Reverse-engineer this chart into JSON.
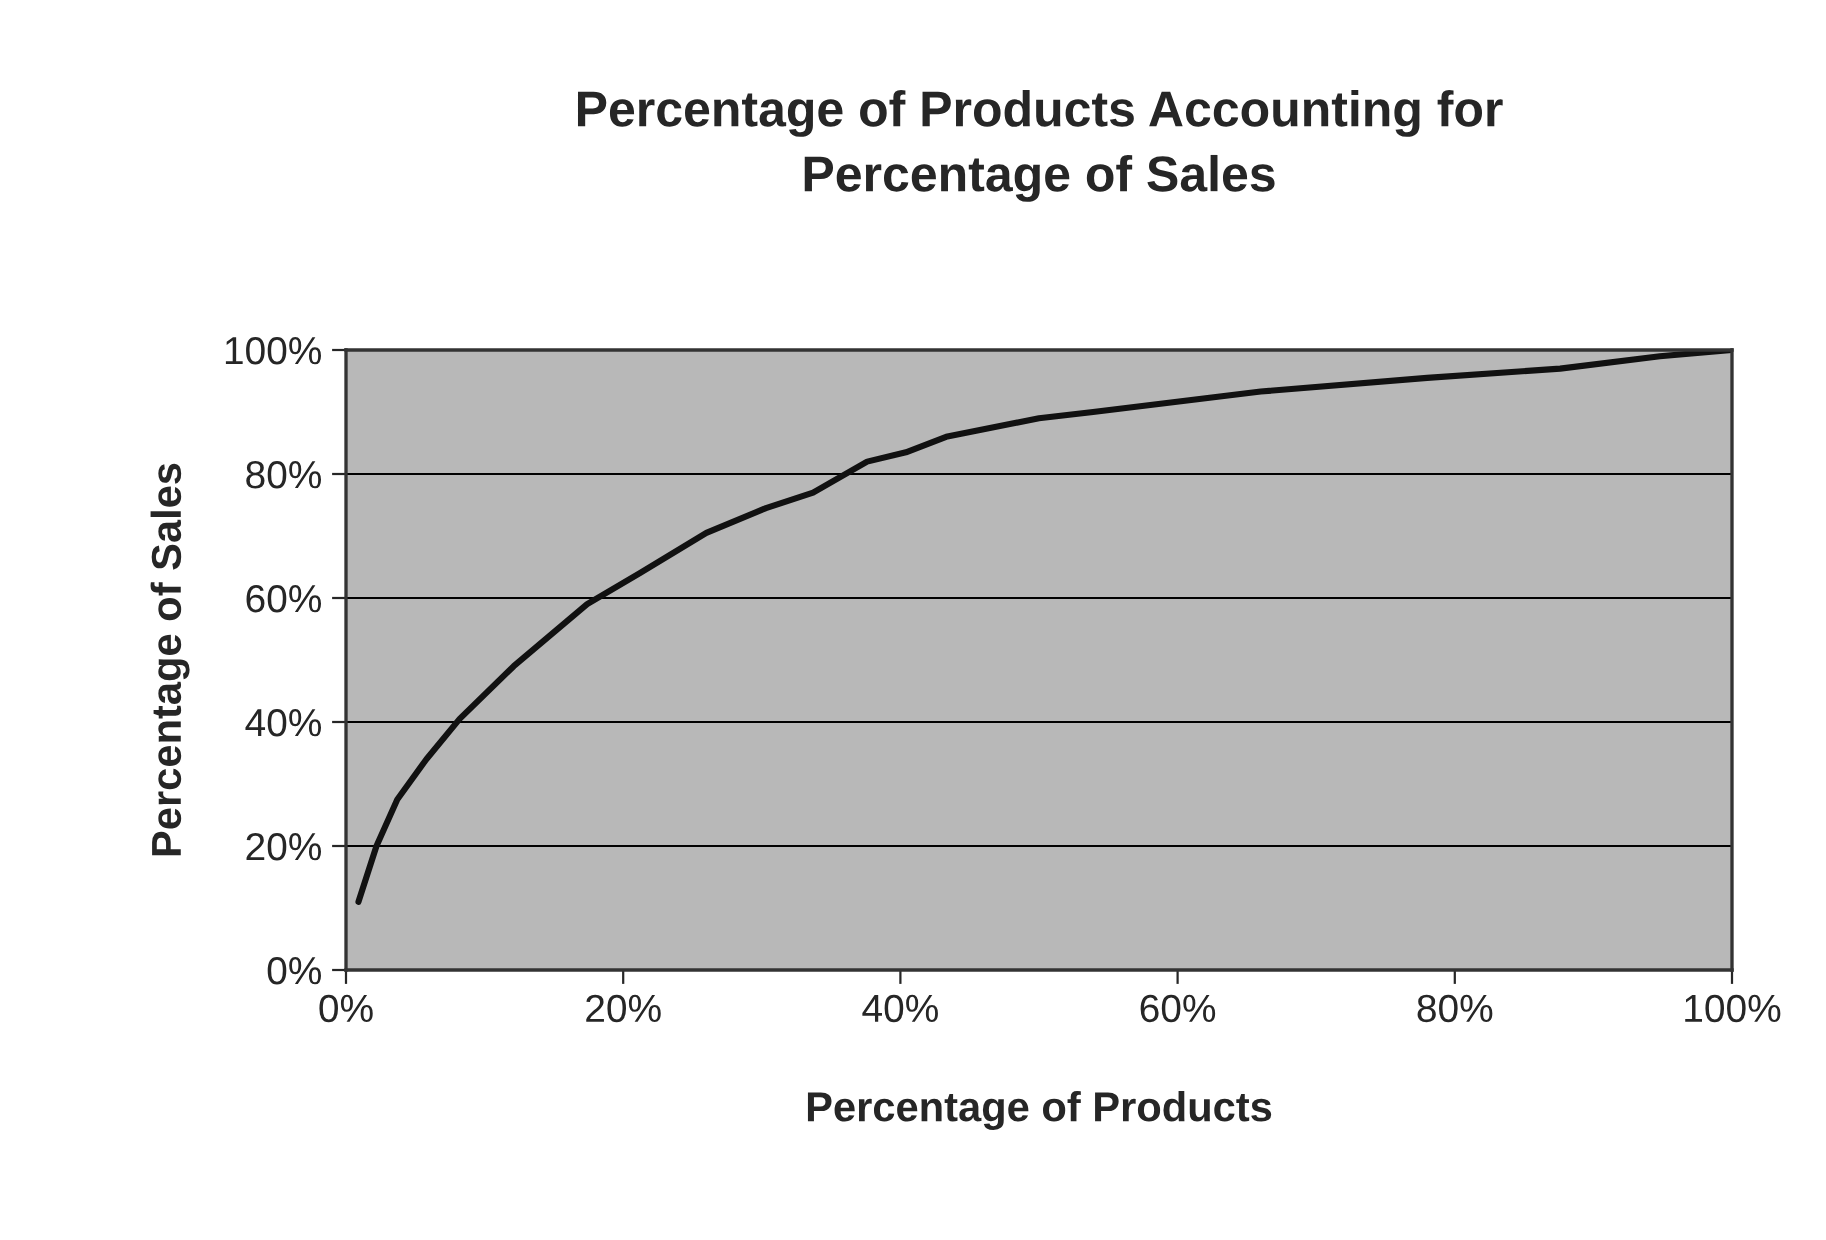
{
  "chart_data": {
    "type": "line",
    "title": "Percentage of Products Accounting for\nPercentage of Sales",
    "xlabel": "Percentage of Products",
    "ylabel": "Percentage of Sales",
    "x": [
      0.9,
      2.2,
      3.7,
      5.8,
      8.2,
      12.1,
      17.4,
      21.2,
      26,
      30.3,
      33.7,
      37.6,
      40.4,
      43.3,
      50,
      53.9,
      66,
      78,
      87.6,
      94.8,
      100
    ],
    "series": [
      {
        "color": "#111111",
        "values": [
          11,
          20,
          27.5,
          34,
          40.5,
          49,
          59,
          64,
          70.5,
          74.5,
          77,
          82,
          83.5,
          86,
          89,
          90,
          93.3,
          95.5,
          97,
          99,
          100
        ]
      }
    ],
    "xlim": [
      0,
      100
    ],
    "ylim": [
      0,
      100
    ],
    "xticks": [
      {
        "value": 0,
        "label": "0%"
      },
      {
        "value": 20,
        "label": "20%"
      },
      {
        "value": 40,
        "label": "40%"
      },
      {
        "value": 60,
        "label": "60%"
      },
      {
        "value": 80,
        "label": "80%"
      },
      {
        "value": 100,
        "label": "100%"
      }
    ],
    "yticks": [
      {
        "value": 0,
        "label": "0%"
      },
      {
        "value": 20,
        "label": "20%"
      },
      {
        "value": 40,
        "label": "40%"
      },
      {
        "value": 60,
        "label": "60%"
      },
      {
        "value": 80,
        "label": "80%"
      },
      {
        "value": 100,
        "label": "100%"
      }
    ],
    "grid": "y",
    "marker": "none",
    "line_style": "solid"
  }
}
